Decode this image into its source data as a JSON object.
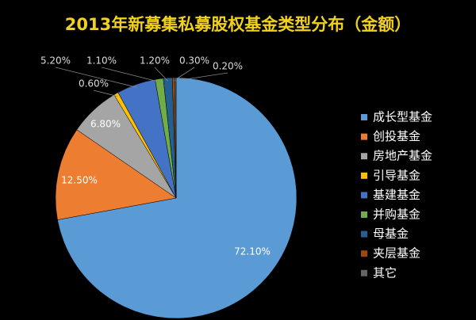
{
  "chart_data": {
    "type": "pie",
    "title": "2013年新募集私募股权基金类型分布（金额）",
    "categories": [
      "成长型基金",
      "创投基金",
      "房地产基金",
      "引导基金",
      "基建基金",
      "并购基金",
      "母基金",
      "夹层基金",
      "其它"
    ],
    "values": [
      72.1,
      12.5,
      6.8,
      0.6,
      5.2,
      1.1,
      1.2,
      0.3,
      0.2
    ],
    "value_labels": [
      "72.10%",
      "12.50%",
      "6.80%",
      "0.60%",
      "5.20%",
      "1.10%",
      "1.20%",
      "0.30%",
      "0.20%"
    ],
    "colors": [
      "#5b9bd5",
      "#ed7d31",
      "#a5a5a5",
      "#ffc000",
      "#4472c4",
      "#70ad47",
      "#255e91",
      "#9e480e",
      "#636363"
    ],
    "legend": "right"
  }
}
